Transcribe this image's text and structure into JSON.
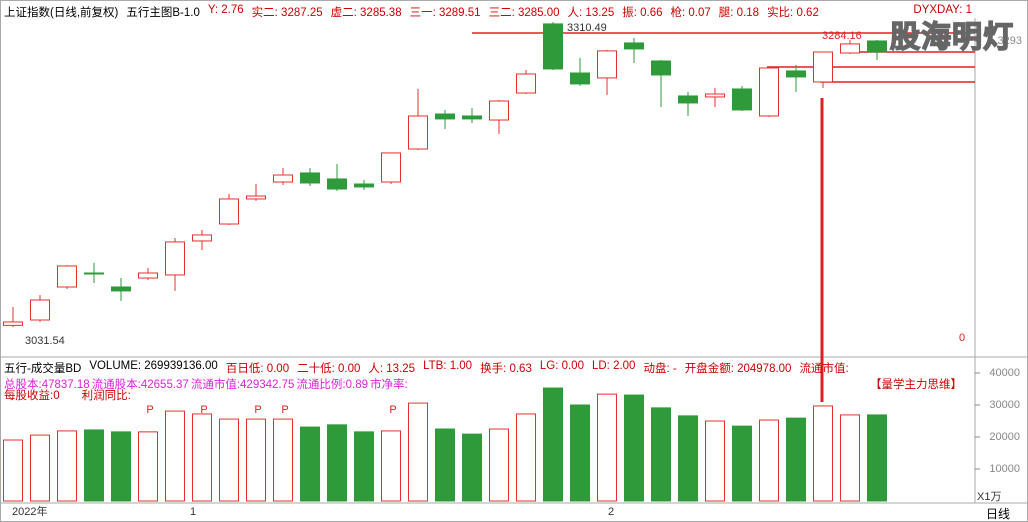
{
  "header": {
    "symbol": "上证指数(日线,前复权)",
    "indicator": "五行主图B-1.0",
    "readings": [
      "Y: 2.76",
      "实二: 3287.25",
      "虚二: 3285.38",
      "三一: 3289.51",
      "三二: 3285.00",
      "人: 13.25",
      "振: 0.66",
      "枪: 0.07",
      "腿: 0.18",
      "实比: 0.62"
    ],
    "corner": "DYXDAY: 1",
    "watermark": "股海明灯"
  },
  "volume_header": {
    "name": "五行-成交量BD",
    "readings": [
      "VOLUME: 269939136.00",
      "百日低: 0.00",
      "二十低: 0.00",
      "人: 13.25",
      "LTB: 1.00",
      "换手: 0.63",
      "LG: 0.00",
      "LD: 2.00",
      "动盘: -",
      "开盘金额: 204978.00",
      "流通市值: "
    ]
  },
  "fundamentals": [
    "总股本:47837.18",
    "流通股本:42655.37",
    "流通市值:429342.75",
    "流通比例:0.89",
    "市净率:"
  ],
  "fundamentals2": [
    "每股收益:0",
    "利润同比:"
  ],
  "tag": "【量学主力思维】",
  "markers": [
    "P",
    "P",
    "P",
    "P",
    "P"
  ],
  "x_axis_labels": [
    "2022年",
    "1",
    "2"
  ],
  "period": "日线",
  "volume_unit": "X1万",
  "chart_data": [
    {
      "type": "candlestick",
      "up_color": "#e8302f",
      "down_color": "#2f9a3a",
      "ylim": [
        3005.9,
        3314.1
      ],
      "yticks": [
        3293
      ],
      "high_label": "3310.49",
      "low_label": "3031.54",
      "last_label": "3284.16",
      "indicator_label": "0",
      "open": [
        3033.0,
        3037.9,
        3068.1,
        3080.9,
        3068.1,
        3076.3,
        3079.1,
        3110.2,
        3125.7,
        3148.6,
        3164.1,
        3172.4,
        3166.9,
        3162.3,
        3164.1,
        3194.3,
        3226.3,
        3224.5,
        3220.8,
        3245.5,
        3308.7,
        3263.8,
        3259.3,
        3291.3,
        3274.8,
        3242.8,
        3241.9,
        3249.2,
        3224.5,
        3265.7,
        3255.6,
        3282.1,
        3293.1
      ],
      "high": [
        3049.8,
        3060.8,
        3088.2,
        3090.1,
        3076.3,
        3085.5,
        3112.9,
        3120.2,
        3153.2,
        3162.3,
        3176.9,
        3176.9,
        3180.6,
        3165.9,
        3190.7,
        3249.2,
        3230.0,
        3231.8,
        3239.1,
        3266.6,
        3310.49,
        3277.6,
        3284.9,
        3295.9,
        3275.7,
        3246.5,
        3250.1,
        3252.0,
        3269.3,
        3271.2,
        3283.0,
        3294.0,
        3294.0
      ],
      "low": [
        3031.54,
        3036.1,
        3066.3,
        3071.8,
        3055.3,
        3074.5,
        3064.5,
        3101.9,
        3124.8,
        3146.8,
        3161.4,
        3160.5,
        3155.9,
        3156.8,
        3162.3,
        3193.4,
        3212.6,
        3218.1,
        3208.0,
        3244.6,
        3266.6,
        3252.0,
        3243.7,
        3273.0,
        3232.7,
        3224.5,
        3232.7,
        3229.1,
        3223.6,
        3246.5,
        3250.1,
        3281.2,
        3275.7
      ],
      "close": [
        3036.1,
        3056.2,
        3087.3,
        3080.0,
        3064.5,
        3080.9,
        3109.3,
        3115.7,
        3148.6,
        3151.3,
        3170.5,
        3163.2,
        3157.7,
        3159.6,
        3190.7,
        3224.5,
        3221.8,
        3221.8,
        3238.2,
        3262.9,
        3267.5,
        3253.8,
        3284.0,
        3285.8,
        3262.0,
        3236.4,
        3244.6,
        3230.0,
        3268.4,
        3260.2,
        3283.0,
        3290.4,
        3283.0
      ]
    },
    {
      "type": "bar",
      "ylim": [
        0,
        42500
      ],
      "yticks": [
        10000,
        20000,
        30000,
        40000
      ],
      "values": [
        19060,
        20600,
        21900,
        22200,
        21600,
        21600,
        28100,
        27200,
        25600,
        25600,
        25600,
        23100,
        23800,
        21600,
        21900,
        30600,
        22500,
        20900,
        22500,
        27200,
        35300,
        30000,
        33400,
        33100,
        29100,
        26600,
        25000,
        23400,
        25300,
        25900,
        29700,
        26900,
        26900
      ]
    }
  ]
}
